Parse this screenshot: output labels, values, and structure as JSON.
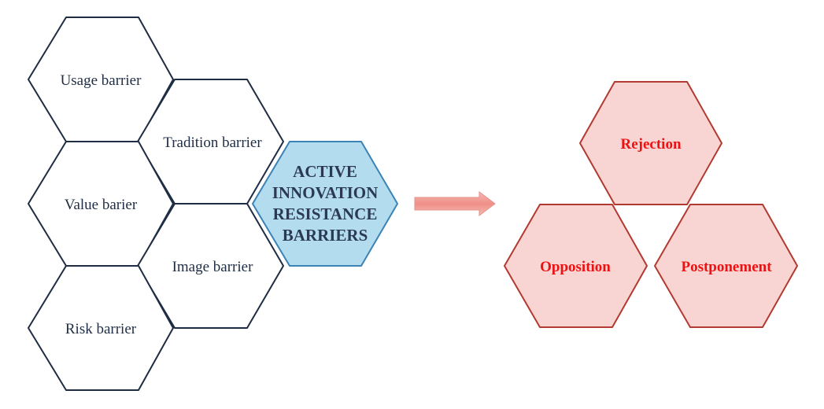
{
  "barriers": [
    {
      "label": "Usage barrier"
    },
    {
      "label": "Tradition barrier"
    },
    {
      "label": "Value barier"
    },
    {
      "label": "Image barrier"
    },
    {
      "label": "Risk barrier"
    }
  ],
  "center": {
    "lines": [
      "ACTIVE",
      "INNOVATION",
      "RESISTANCE",
      "BARRIERS"
    ]
  },
  "outcomes": [
    {
      "label": "Rejection"
    },
    {
      "label": "Opposition"
    },
    {
      "label": "Postponement"
    }
  ],
  "colors": {
    "barrier_stroke": "#1f2d44",
    "barrier_fill": "#ffffff",
    "center_fill": "#b3dcef",
    "center_stroke": "#3b82b5",
    "outcome_fill": "#f8d5d3",
    "outcome_stroke": "#b23a30",
    "outcome_text": "#ee1111",
    "arrow_fill": "#f29a94"
  }
}
